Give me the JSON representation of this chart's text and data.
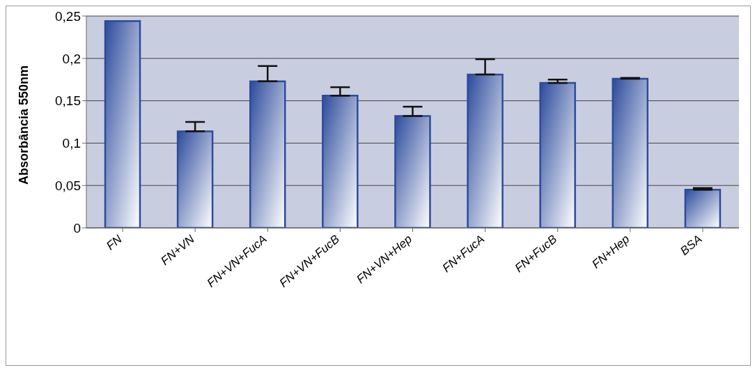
{
  "chart_data": {
    "type": "bar",
    "ylabel": "Absorbância 550nm",
    "categories": [
      "FN",
      "FN+VN",
      "FN+VN+FucA",
      "FN+VN+FucB",
      "FN+VN+Hep",
      "FN+FucA",
      "FN+FucB",
      "FN+Hep",
      "BSA"
    ],
    "values": [
      0.244,
      0.114,
      0.173,
      0.156,
      0.132,
      0.181,
      0.171,
      0.176,
      0.045
    ],
    "errors": [
      null,
      [
        0.114,
        0.125
      ],
      [
        0.173,
        0.191
      ],
      [
        0.156,
        0.166
      ],
      [
        0.132,
        0.143
      ],
      [
        0.181,
        0.199
      ],
      [
        0.171,
        0.175
      ],
      [
        0.176,
        0.177
      ],
      [
        0.045,
        0.047
      ]
    ],
    "color": "#2c4b9c",
    "ylim": [
      0,
      0.25
    ],
    "yticks": [
      {
        "value": 0,
        "label": "0"
      },
      {
        "value": 0.05,
        "label": "0,05"
      },
      {
        "value": 0.1,
        "label": "0,1"
      },
      {
        "value": 0.15,
        "label": "0,15"
      },
      {
        "value": 0.2,
        "label": "0,2"
      },
      {
        "value": 0.25,
        "label": "0,25"
      }
    ],
    "grid": "y",
    "legend": false
  }
}
